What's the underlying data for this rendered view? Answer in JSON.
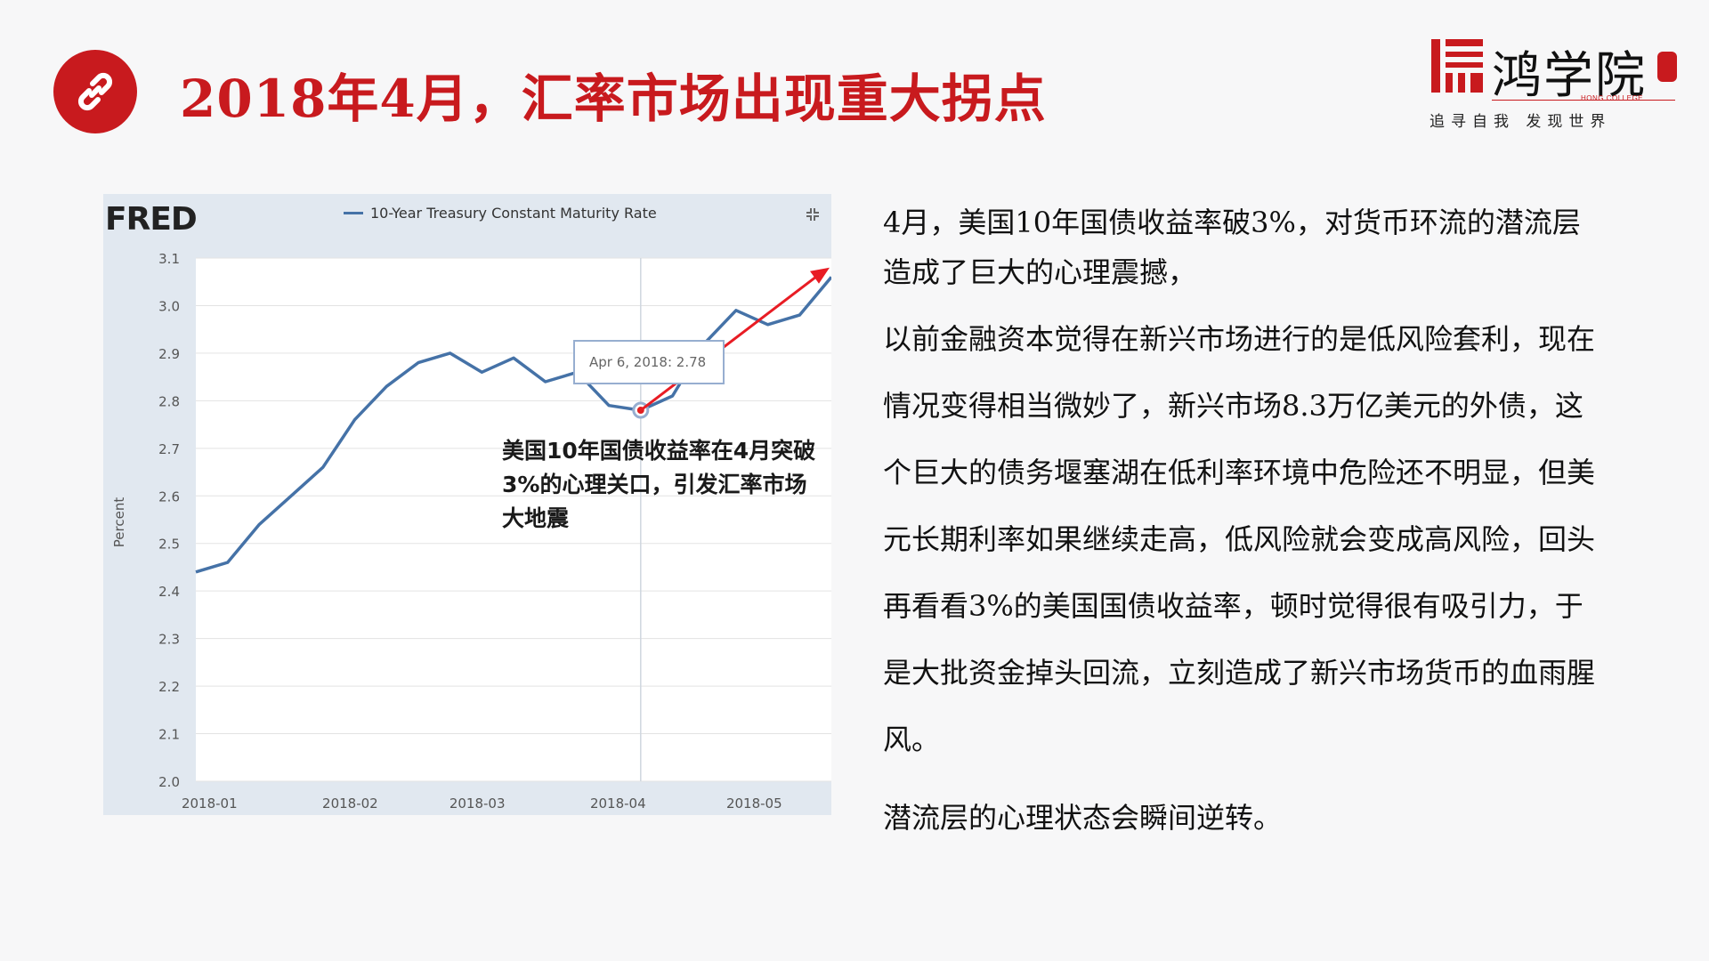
{
  "header": {
    "title": "2018年4月，汇率市场出现重大拐点",
    "icon": "link-icon",
    "accent_color": "#c81a1e"
  },
  "logo": {
    "name": "鸿学院",
    "english": "HONG COLLEGE",
    "slogan": "追寻自我  发现世界"
  },
  "chart": {
    "brand": "FRED",
    "tooltip": "Apr 6, 2018: 2.78",
    "annotation": "美国10年国债收益率在4月突破3%的心理关口，引发汇率市场大地震"
  },
  "chart_data": {
    "type": "line",
    "legend": "10-Year Treasury Constant Maturity Rate",
    "ylabel": "Percent",
    "ylim": [
      2.0,
      3.1
    ],
    "yticks": [
      "2.0",
      "2.1",
      "2.2",
      "2.3",
      "2.4",
      "2.5",
      "2.6",
      "2.7",
      "2.8",
      "2.9",
      "3.0",
      "3.1"
    ],
    "xticks": [
      "2018-01",
      "2018-02",
      "2018-03",
      "2018-04",
      "2018-05"
    ],
    "series": [
      {
        "name": "10-Year Treasury Constant Maturity Rate",
        "color": "#4572a7",
        "x": [
          "2017-12-29",
          "2018-01-05",
          "2018-01-12",
          "2018-01-19",
          "2018-01-26",
          "2018-02-02",
          "2018-02-09",
          "2018-02-16",
          "2018-02-23",
          "2018-03-02",
          "2018-03-09",
          "2018-03-16",
          "2018-03-23",
          "2018-03-30",
          "2018-04-06",
          "2018-04-13",
          "2018-04-20",
          "2018-04-27",
          "2018-05-04",
          "2018-05-11",
          "2018-05-18"
        ],
        "values": [
          2.44,
          2.46,
          2.54,
          2.6,
          2.66,
          2.76,
          2.83,
          2.88,
          2.9,
          2.86,
          2.89,
          2.84,
          2.86,
          2.79,
          2.78,
          2.81,
          2.92,
          2.99,
          2.96,
          2.98,
          3.06
        ]
      }
    ],
    "highlight": {
      "x": "2018-04-06",
      "value": 2.78
    }
  },
  "paragraphs": [
    "4月，美国10年国债收益率破3%，对货币环流的潜流层造成了巨大的心理震撼，",
    "以前金融资本觉得在新兴市场进行的是低风险套利，现在情况变得相当微妙了，新兴市场8.3万亿美元的外债，这个巨大的债务堰塞湖在低利率环境中危险还不明显，但美元长期利率如果继续走高，低风险就会变成高风险，回头再看看3%的美国国债收益率，顿时觉得很有吸引力，于是大批资金掉头回流，立刻造成了新兴市场货币的血雨腥风。",
    "潜流层的心理状态会瞬间逆转。"
  ]
}
